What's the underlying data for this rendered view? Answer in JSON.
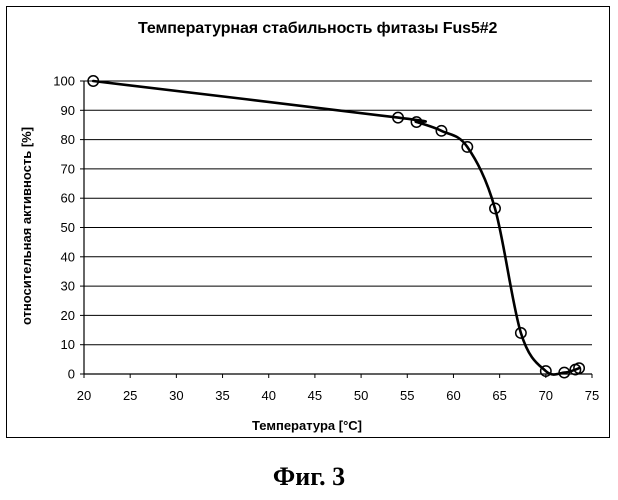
{
  "chart_data": {
    "type": "line",
    "title": "Температурная стабильность фитазы Fus5#2",
    "xlabel": "Температура [°C]",
    "ylabel": "относительная активность [%]",
    "xlim": [
      20,
      75
    ],
    "ylim": [
      0,
      100
    ],
    "xticks": [
      20,
      25,
      30,
      35,
      40,
      45,
      50,
      55,
      60,
      65,
      70,
      75
    ],
    "yticks": [
      0,
      10,
      20,
      30,
      40,
      50,
      60,
      70,
      80,
      90,
      100
    ],
    "grid": "horizontal",
    "marker": "open-circle",
    "series": [
      {
        "x": [
          21,
          54,
          56,
          58.7,
          61.5,
          64.5,
          67.3,
          70,
          72,
          73.2,
          73.6
        ],
        "values": [
          100,
          87.5,
          86,
          83,
          77.5,
          56.5,
          14,
          1,
          0.5,
          1.5,
          2
        ]
      }
    ]
  },
  "caption": "Фиг. 3"
}
